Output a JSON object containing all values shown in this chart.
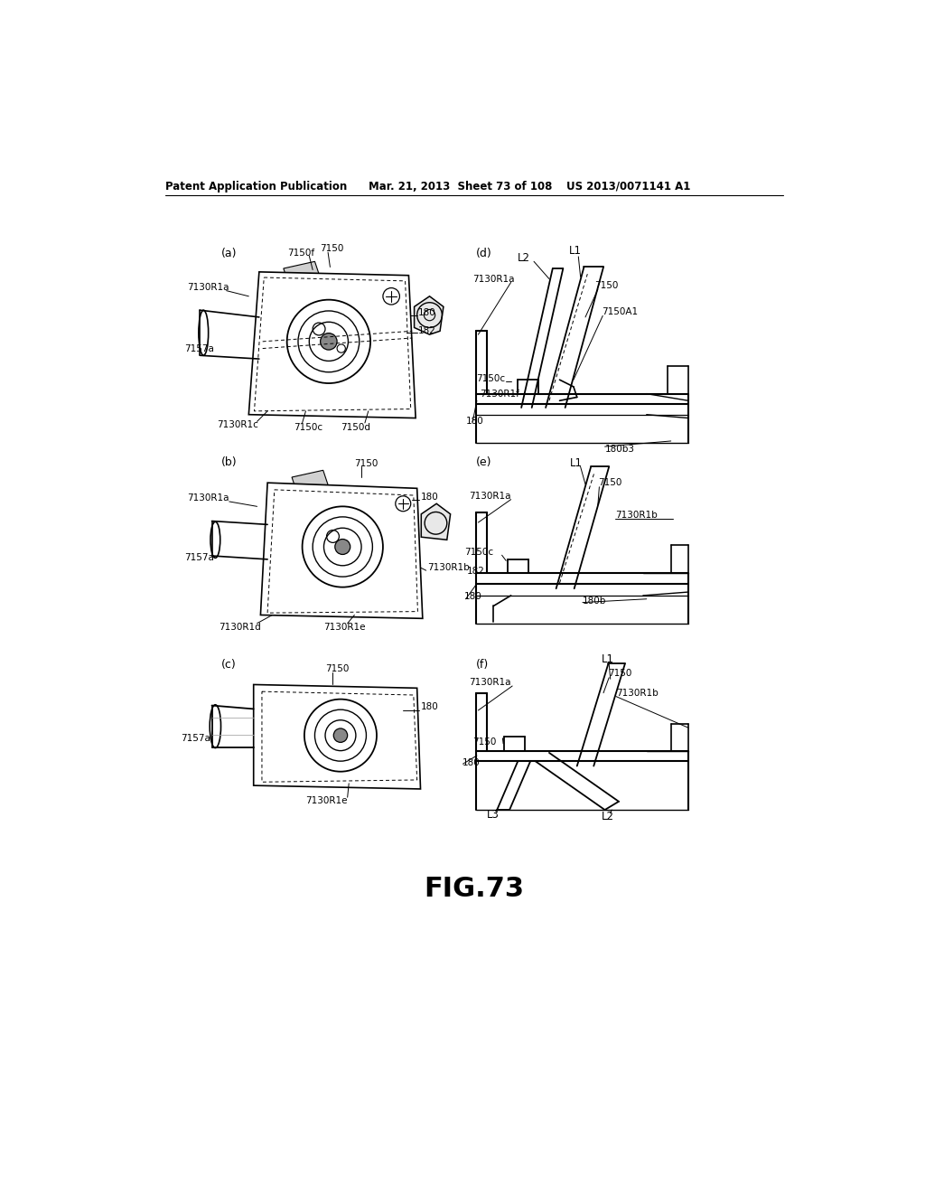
{
  "header_left": "Patent Application Publication",
  "header_mid": "Mar. 21, 2013  Sheet 73 of 108",
  "header_right": "US 2013/0071141 A1",
  "fig_caption": "FIG.73",
  "bg": "#ffffff"
}
